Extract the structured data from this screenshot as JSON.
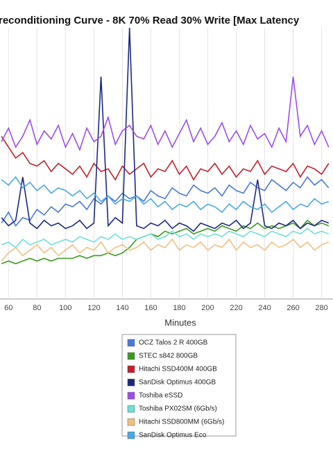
{
  "chart_data": {
    "type": "line",
    "title": "reconditioning Curve - 8K 70% Read 30% Write [Max Latency",
    "x_label": "Minutes",
    "x": [
      55,
      60,
      65,
      70,
      75,
      80,
      85,
      90,
      95,
      100,
      105,
      110,
      115,
      120,
      125,
      130,
      135,
      140,
      145,
      150,
      155,
      160,
      165,
      170,
      175,
      180,
      185,
      190,
      195,
      200,
      205,
      210,
      215,
      220,
      225,
      230,
      235,
      240,
      245,
      250,
      255,
      260,
      265,
      270,
      275,
      280,
      285
    ],
    "xlim": [
      54,
      288
    ],
    "xticks": [
      60,
      80,
      100,
      120,
      140,
      160,
      180,
      200,
      220,
      240,
      260,
      280
    ],
    "ylim": [
      0,
      100
    ],
    "grid": true,
    "legend": "bottom",
    "series": [
      {
        "name": "OCZ Talos 2 R 400GB",
        "color": "#4a78dc",
        "values": [
          28,
          32,
          27,
          30,
          29,
          33,
          31,
          34,
          32,
          35,
          34,
          36,
          33,
          37,
          35,
          38,
          36,
          39,
          37,
          38,
          36,
          40,
          38,
          37,
          41,
          39,
          38,
          42,
          40,
          39,
          41,
          38,
          42,
          40,
          39,
          43,
          41,
          40,
          44,
          42,
          40,
          43,
          41,
          45,
          42,
          44,
          41
        ]
      },
      {
        "name": "STEC s842 800GB",
        "color": "#3a9a1e",
        "values": [
          13,
          14,
          13,
          14,
          15,
          14,
          15,
          14,
          15,
          15,
          15,
          16,
          15,
          16,
          16,
          17,
          16,
          17,
          19,
          22,
          23,
          24,
          23,
          25,
          24,
          25,
          26,
          24,
          25,
          26,
          25,
          27,
          26,
          25,
          27,
          26,
          28,
          26,
          27,
          26,
          27,
          28,
          26,
          29,
          27,
          28,
          27
        ]
      },
      {
        "name": "Hitachi SSD400M 400GB",
        "color": "#c41e2a",
        "values": [
          60,
          56,
          52,
          54,
          50,
          49,
          51,
          47,
          50,
          48,
          46,
          49,
          45,
          50,
          47,
          48,
          44,
          49,
          46,
          48,
          50,
          45,
          48,
          47,
          51,
          46,
          49,
          44,
          48,
          47,
          50,
          46,
          49,
          45,
          48,
          47,
          51,
          46,
          49,
          48,
          47,
          50,
          45,
          49,
          48,
          46,
          50
        ]
      },
      {
        "name": "SanDisk Optimus 400GB",
        "color": "#1a2880",
        "values": [
          30,
          27,
          29,
          45,
          28,
          26,
          29,
          27,
          28,
          26,
          27,
          29,
          26,
          28,
          82,
          27,
          30,
          28,
          100,
          27,
          26,
          28,
          27,
          29,
          26,
          28,
          27,
          25,
          28,
          27,
          26,
          28,
          27,
          29,
          26,
          28,
          44,
          27,
          26,
          28,
          27,
          29,
          26,
          28,
          27,
          29,
          28
        ]
      },
      {
        "name": "Toshiba eSSD",
        "color": "#9b4de8",
        "values": [
          58,
          63,
          56,
          60,
          66,
          57,
          62,
          59,
          64,
          56,
          61,
          55,
          63,
          58,
          60,
          67,
          57,
          62,
          64,
          60,
          59,
          64,
          57,
          62,
          56,
          61,
          66,
          58,
          63,
          57,
          60,
          65,
          58,
          62,
          57,
          64,
          59,
          61,
          56,
          63,
          58,
          82,
          60,
          64,
          57,
          62,
          56
        ]
      },
      {
        "name": "Toshiba PX02SM (6Gb/s)",
        "color": "#6ee0d8",
        "values": [
          20,
          21,
          19,
          22,
          20,
          21,
          22,
          20,
          21,
          22,
          21,
          23,
          22,
          21,
          23,
          22,
          24,
          22,
          23,
          22,
          23,
          24,
          22,
          23,
          25,
          23,
          24,
          22,
          24,
          23,
          24,
          23,
          25,
          24,
          23,
          25,
          24,
          23,
          25,
          24,
          23,
          25,
          24,
          26,
          24,
          25,
          24
        ]
      },
      {
        "name": "Hitachi SSD800MM (6Gb/s)",
        "color": "#f0c080",
        "values": [
          14,
          17,
          19,
          16,
          18,
          20,
          17,
          19,
          16,
          18,
          20,
          17,
          19,
          18,
          21,
          17,
          19,
          20,
          18,
          19,
          21,
          18,
          20,
          19,
          22,
          18,
          20,
          19,
          21,
          18,
          20,
          19,
          22,
          18,
          21,
          19,
          20,
          18,
          21,
          19,
          20,
          22,
          19,
          21,
          18,
          20,
          21
        ]
      },
      {
        "name": "SanDisk Optimus Eco",
        "color": "#4aa8e8",
        "values": [
          44,
          42,
          45,
          41,
          43,
          40,
          42,
          39,
          41,
          40,
          38,
          40,
          37,
          39,
          36,
          38,
          35,
          37,
          36,
          38,
          35,
          37,
          34,
          36,
          33,
          35,
          34,
          36,
          33,
          35,
          34,
          32,
          35,
          33,
          36,
          34,
          33,
          35,
          32,
          34,
          36,
          33,
          35,
          34,
          37,
          35,
          36
        ]
      }
    ]
  }
}
